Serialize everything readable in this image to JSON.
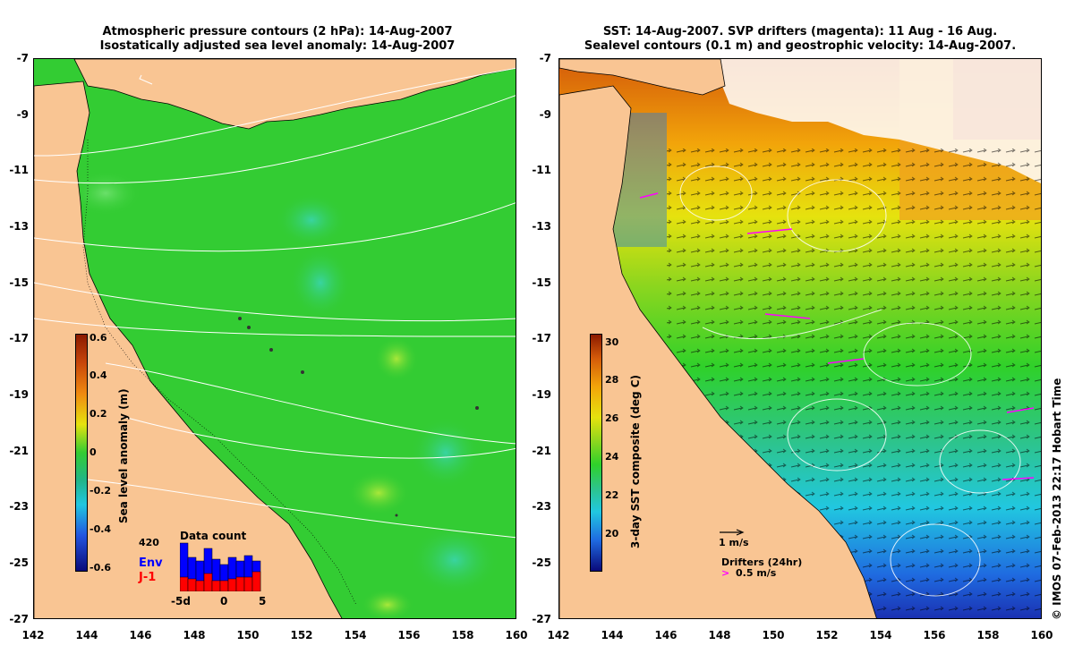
{
  "left_panel": {
    "title_line1": "Atmospheric pressure contours (2 hPa): 14-Aug-2007",
    "title_line2": "Isostatically adjusted sea level anomaly: 14-Aug-2007",
    "colorbar": {
      "label": "Sea level anomaly (m)",
      "ticks": [
        "0.6",
        "0.4",
        "0.2",
        "0",
        "-0.2",
        "-0.4",
        "-0.6"
      ]
    },
    "data_count": {
      "title": "Data count",
      "max_label": "420",
      "legend_env": "Env",
      "legend_j1": "J-1",
      "x_labels": [
        "-5d",
        "0",
        "5"
      ],
      "env_colour": "#0000ff",
      "j1_colour": "#ff0000"
    }
  },
  "right_panel": {
    "title_line1": "SST: 14-Aug-2007. SVP drifters (magenta): 11 Aug - 16 Aug.",
    "title_line2": "Sealevel contours (0.1 m) and geostrophic velocity: 14-Aug-2007.",
    "colorbar": {
      "label": "3-day SST composite (deg C)",
      "ticks": [
        "30",
        "28",
        "26",
        "24",
        "22",
        "20"
      ]
    },
    "velocity_scale": "1 m/s",
    "drifters_label": "Drifters (24hr)",
    "drifters_speed": "0.5 m/s",
    "drifter_colour": "#ff00ff"
  },
  "axes": {
    "y_ticks": [
      "-7",
      "-9",
      "-11",
      "-13",
      "-15",
      "-17",
      "-19",
      "-21",
      "-23",
      "-25",
      "-27"
    ],
    "x_ticks": [
      "142",
      "144",
      "146",
      "148",
      "150",
      "152",
      "154",
      "156",
      "158",
      "160"
    ],
    "lon_range": [
      142,
      160
    ],
    "lat_range": [
      -27,
      -7
    ]
  },
  "colors": {
    "land": "#f9c593",
    "ocean_green": "#2fd12a",
    "sst_yellow": "#e6e20e",
    "sst_orange": "#f2a40a",
    "sst_cyan": "#21c7e0",
    "sst_blue": "#1f3fe0"
  },
  "copyright": "© IMOS 07-Feb-2013 22:17 Hobart Time"
}
